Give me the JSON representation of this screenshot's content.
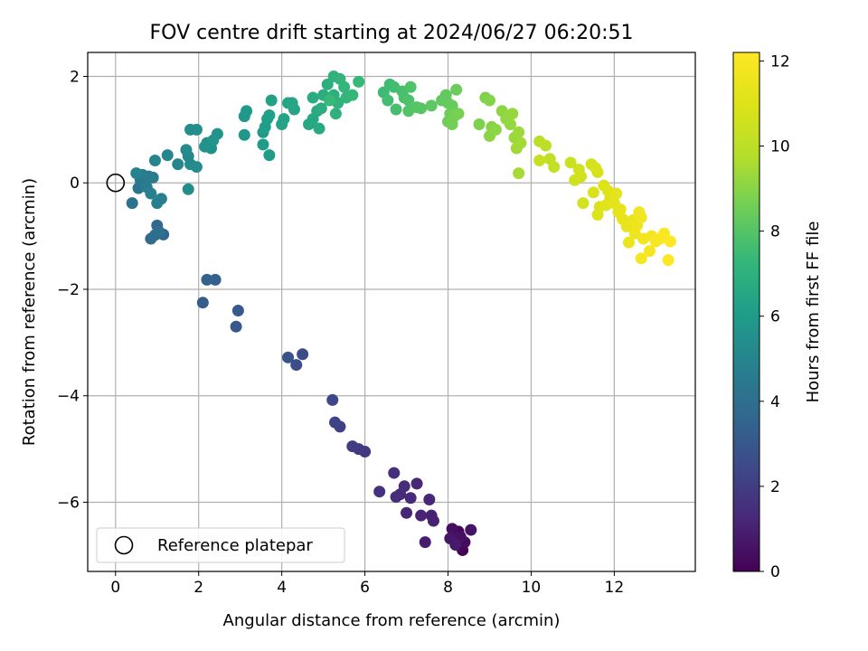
{
  "chart_data": {
    "type": "scatter",
    "title": "FOV centre drift starting at 2024/06/27 06:20:51",
    "xlabel": "Angular distance from reference (arcmin)",
    "ylabel": "Rotation from reference (arcmin)",
    "xlim": [
      -0.67,
      13.95
    ],
    "ylim": [
      -7.3,
      2.45
    ],
    "x_ticks": [
      0,
      2,
      4,
      6,
      8,
      10,
      12
    ],
    "y_ticks": [
      -6,
      -4,
      -2,
      0,
      2
    ],
    "grid": true,
    "legend": {
      "position": "lower-left",
      "entries": [
        "Reference platepar"
      ]
    },
    "reference_point": {
      "x": 0,
      "y": 0
    },
    "colorbar": {
      "label": "Hours from first FF file",
      "range": [
        0,
        12.2
      ],
      "ticks": [
        0,
        2,
        4,
        6,
        8,
        10,
        12
      ],
      "colormap": "viridis"
    },
    "points": [
      [
        8.35,
        -6.9,
        0.1
      ],
      [
        8.25,
        -6.55,
        0.2
      ],
      [
        8.4,
        -6.75,
        0.3
      ],
      [
        8.1,
        -6.5,
        0.4
      ],
      [
        8.3,
        -6.65,
        0.5
      ],
      [
        8.55,
        -6.52,
        0.6
      ],
      [
        8.05,
        -6.68,
        0.7
      ],
      [
        8.18,
        -6.8,
        0.8
      ],
      [
        7.45,
        -6.75,
        0.9
      ],
      [
        7.6,
        -6.25,
        1.0
      ],
      [
        7.65,
        -6.35,
        1.05
      ],
      [
        7.35,
        -6.25,
        1.1
      ],
      [
        7.0,
        -6.2,
        1.15
      ],
      [
        7.55,
        -5.95,
        1.2
      ],
      [
        7.25,
        -5.65,
        1.25
      ],
      [
        7.1,
        -5.92,
        1.3
      ],
      [
        6.85,
        -5.85,
        1.35
      ],
      [
        6.95,
        -5.7,
        1.4
      ],
      [
        6.75,
        -5.9,
        1.45
      ],
      [
        6.7,
        -5.45,
        1.5
      ],
      [
        6.35,
        -5.8,
        1.55
      ],
      [
        6.0,
        -5.05,
        1.8
      ],
      [
        5.85,
        -5.0,
        1.9
      ],
      [
        5.7,
        -4.95,
        2.0
      ],
      [
        5.4,
        -4.58,
        2.15
      ],
      [
        5.28,
        -4.5,
        2.25
      ],
      [
        5.22,
        -4.08,
        2.4
      ],
      [
        4.5,
        -3.22,
        2.55
      ],
      [
        4.35,
        -3.42,
        2.65
      ],
      [
        4.15,
        -3.28,
        2.8
      ],
      [
        2.9,
        -2.7,
        3.0
      ],
      [
        2.95,
        -2.4,
        3.1
      ],
      [
        2.1,
        -2.25,
        3.2
      ],
      [
        2.4,
        -1.82,
        3.35
      ],
      [
        2.2,
        -1.82,
        3.45
      ],
      [
        1.15,
        -0.97,
        3.6
      ],
      [
        1.0,
        -0.8,
        3.7
      ],
      [
        0.85,
        -1.05,
        3.8
      ],
      [
        0.95,
        -0.98,
        3.9
      ],
      [
        1.05,
        -0.92,
        4.0
      ],
      [
        0.4,
        -0.38,
        4.1
      ],
      [
        0.55,
        -0.1,
        4.2
      ],
      [
        0.7,
        -0.05,
        4.3
      ],
      [
        0.6,
        0.05,
        4.4
      ],
      [
        0.8,
        0.12,
        4.5
      ],
      [
        0.65,
        0.15,
        4.55
      ],
      [
        0.9,
        0.1,
        4.6
      ],
      [
        0.75,
        -0.08,
        4.65
      ],
      [
        1.1,
        -0.3,
        4.7
      ],
      [
        1.0,
        -0.38,
        4.75
      ],
      [
        0.85,
        -0.2,
        4.8
      ],
      [
        0.5,
        0.18,
        4.9
      ],
      [
        0.95,
        0.42,
        5.0
      ],
      [
        1.25,
        0.52,
        5.05
      ],
      [
        1.5,
        0.35,
        5.1
      ],
      [
        1.75,
        0.5,
        5.15
      ],
      [
        1.8,
        0.35,
        5.2
      ],
      [
        1.7,
        0.62,
        5.25
      ],
      [
        1.95,
        0.3,
        5.3
      ],
      [
        1.75,
        -0.12,
        5.35
      ],
      [
        1.8,
        1.0,
        5.4
      ],
      [
        1.95,
        1.0,
        5.45
      ],
      [
        2.2,
        0.75,
        5.5
      ],
      [
        2.3,
        0.65,
        5.55
      ],
      [
        2.15,
        0.68,
        5.6
      ],
      [
        2.35,
        0.8,
        5.65
      ],
      [
        2.45,
        0.92,
        5.7
      ],
      [
        3.1,
        0.9,
        5.8
      ],
      [
        3.1,
        1.25,
        5.85
      ],
      [
        3.15,
        1.35,
        5.9
      ],
      [
        3.55,
        0.95,
        5.95
      ],
      [
        3.55,
        0.72,
        6.0
      ],
      [
        3.7,
        0.52,
        6.05
      ],
      [
        3.6,
        1.05,
        6.1
      ],
      [
        3.65,
        1.2,
        6.15
      ],
      [
        3.7,
        1.27,
        6.2
      ],
      [
        3.75,
        1.55,
        6.25
      ],
      [
        4.0,
        1.1,
        6.3
      ],
      [
        4.05,
        1.2,
        6.35
      ],
      [
        4.15,
        1.5,
        6.4
      ],
      [
        4.3,
        1.38,
        6.45
      ],
      [
        4.25,
        1.5,
        6.5
      ],
      [
        4.75,
        1.2,
        6.55
      ],
      [
        4.65,
        1.1,
        6.6
      ],
      [
        4.9,
        1.02,
        6.65
      ],
      [
        4.85,
        1.35,
        6.7
      ],
      [
        4.75,
        1.6,
        6.75
      ],
      [
        4.95,
        1.4,
        6.8
      ],
      [
        5.0,
        1.65,
        6.85
      ],
      [
        5.1,
        1.85,
        6.9
      ],
      [
        5.25,
        1.65,
        6.95
      ],
      [
        5.3,
        1.3,
        7.0
      ],
      [
        5.35,
        1.5,
        7.05
      ],
      [
        5.25,
        2.0,
        7.1
      ],
      [
        5.4,
        1.95,
        7.15
      ],
      [
        5.55,
        1.6,
        7.2
      ],
      [
        5.5,
        1.8,
        7.25
      ],
      [
        5.7,
        1.65,
        7.3
      ],
      [
        5.85,
        1.9,
        7.35
      ],
      [
        5.15,
        1.55,
        7.4
      ],
      [
        6.45,
        1.7,
        7.5
      ],
      [
        6.6,
        1.85,
        7.55
      ],
      [
        6.7,
        1.8,
        7.6
      ],
      [
        6.55,
        1.55,
        7.65
      ],
      [
        6.75,
        1.38,
        7.7
      ],
      [
        6.9,
        1.72,
        7.75
      ],
      [
        6.95,
        1.6,
        7.8
      ],
      [
        7.05,
        1.55,
        7.85
      ],
      [
        7.1,
        1.8,
        7.9
      ],
      [
        7.05,
        1.35,
        7.95
      ],
      [
        7.25,
        1.42,
        8.0
      ],
      [
        7.35,
        1.4,
        8.05
      ],
      [
        7.6,
        1.45,
        8.15
      ],
      [
        7.85,
        1.55,
        8.25
      ],
      [
        7.95,
        1.65,
        8.3
      ],
      [
        8.0,
        1.5,
        8.35
      ],
      [
        8.1,
        1.45,
        8.4
      ],
      [
        8.2,
        1.75,
        8.45
      ],
      [
        8.05,
        1.3,
        8.5
      ],
      [
        8.0,
        1.15,
        8.55
      ],
      [
        8.1,
        1.1,
        8.6
      ],
      [
        8.15,
        1.25,
        8.65
      ],
      [
        8.25,
        1.3,
        8.7
      ],
      [
        8.75,
        1.1,
        8.8
      ],
      [
        8.9,
        1.6,
        8.85
      ],
      [
        9.0,
        1.55,
        8.9
      ],
      [
        9.05,
        1.05,
        8.95
      ],
      [
        9.0,
        0.88,
        9.0
      ],
      [
        9.15,
        1.0,
        9.05
      ],
      [
        9.3,
        1.35,
        9.1
      ],
      [
        9.4,
        1.2,
        9.15
      ],
      [
        9.5,
        1.1,
        9.2
      ],
      [
        9.55,
        1.3,
        9.25
      ],
      [
        9.6,
        0.85,
        9.3
      ],
      [
        9.7,
        0.95,
        9.35
      ],
      [
        9.65,
        0.65,
        9.4
      ],
      [
        9.75,
        0.75,
        9.45
      ],
      [
        9.7,
        0.18,
        9.5
      ],
      [
        10.2,
        0.78,
        9.9
      ],
      [
        10.35,
        0.7,
        10.0
      ],
      [
        10.45,
        0.45,
        10.1
      ],
      [
        10.55,
        0.3,
        10.2
      ],
      [
        10.2,
        0.42,
        10.3
      ],
      [
        10.95,
        0.38,
        10.4
      ],
      [
        11.05,
        0.05,
        10.5
      ],
      [
        11.15,
        0.25,
        10.55
      ],
      [
        11.2,
        0.12,
        10.6
      ],
      [
        11.25,
        -0.38,
        10.65
      ],
      [
        11.45,
        0.35,
        10.7
      ],
      [
        11.55,
        0.28,
        10.75
      ],
      [
        11.6,
        0.2,
        10.8
      ],
      [
        11.5,
        -0.18,
        10.85
      ],
      [
        11.65,
        -0.45,
        10.9
      ],
      [
        11.6,
        -0.6,
        10.95
      ],
      [
        11.75,
        -0.05,
        11.0
      ],
      [
        11.85,
        -0.15,
        11.05
      ],
      [
        11.9,
        -0.3,
        11.1
      ],
      [
        11.8,
        -0.42,
        11.15
      ],
      [
        12.0,
        -0.38,
        11.2
      ],
      [
        12.05,
        -0.2,
        11.25
      ],
      [
        12.1,
        -0.55,
        11.3
      ],
      [
        12.15,
        -0.5,
        11.35
      ],
      [
        12.2,
        -0.68,
        11.4
      ],
      [
        12.3,
        -0.82,
        11.45
      ],
      [
        12.35,
        -1.12,
        11.5
      ],
      [
        12.45,
        -0.7,
        11.55
      ],
      [
        12.5,
        -0.95,
        11.6
      ],
      [
        12.55,
        -0.8,
        11.65
      ],
      [
        12.6,
        -0.55,
        11.7
      ],
      [
        12.65,
        -0.65,
        11.75
      ],
      [
        12.7,
        -1.05,
        11.8
      ],
      [
        12.65,
        -1.42,
        11.85
      ],
      [
        12.85,
        -1.28,
        11.9
      ],
      [
        12.9,
        -1.0,
        11.95
      ],
      [
        13.0,
        -1.1,
        12.0
      ],
      [
        13.1,
        -1.05,
        12.05
      ],
      [
        13.2,
        -0.95,
        12.1
      ],
      [
        13.35,
        -1.1,
        12.15
      ],
      [
        13.3,
        -1.45,
        12.2
      ]
    ]
  }
}
